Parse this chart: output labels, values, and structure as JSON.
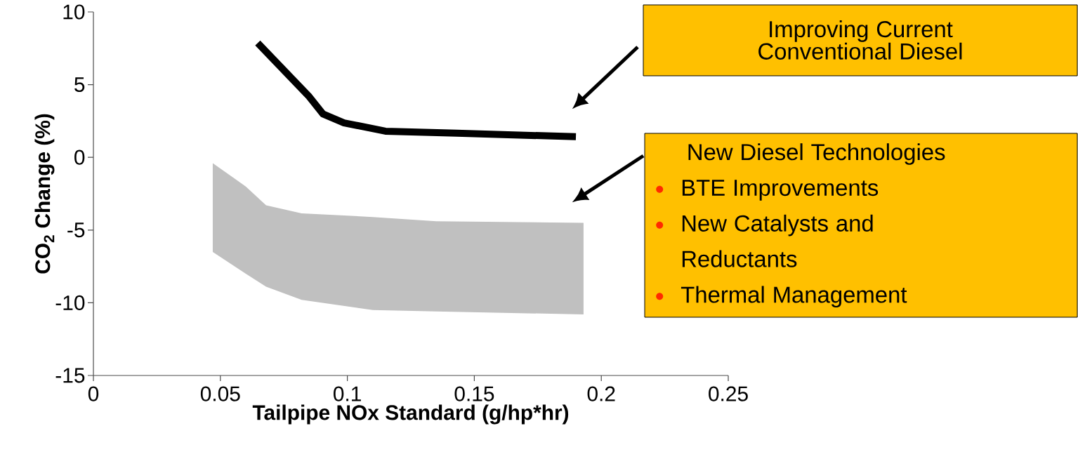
{
  "chart_data": {
    "type": "line",
    "xlabel": "Tailpipe NOx Standard (g/hp*hr)",
    "ylabel": "CO$_{2}$ Change (%)",
    "xlim": [
      0,
      0.25
    ],
    "ylim": [
      -15,
      10
    ],
    "xticks": [
      0,
      0.05,
      0.1,
      0.15,
      0.2,
      0.25
    ],
    "yticks": [
      -15,
      -10,
      -5,
      0,
      5,
      10
    ],
    "grid": false,
    "series": [
      {
        "color": "#000000",
        "x": [
          0.0647,
          0.085,
          0.0904,
          0.0987,
          0.115,
          0.143,
          0.19
        ],
        "values": [
          7.86,
          4.17,
          2.98,
          2.37,
          1.8,
          1.66,
          1.42
        ]
      },
      {
        "color": "#c0c0c0",
        "x": [
          0.047,
          0.06,
          0.068,
          0.082,
          0.11,
          0.135,
          0.193
        ],
        "values": [
          null,
          null,
          null,
          null,
          null,
          null,
          null
        ],
        "lower": [
          -6.5,
          -8.0,
          -8.9,
          -9.8,
          -10.5,
          -10.6,
          -10.8
        ],
        "upper": [
          -0.4,
          -2.0,
          -3.3,
          -3.85,
          -4.1,
          -4.4,
          -4.5
        ]
      }
    ],
    "annotations": [
      "Improving Current Conventional Diesel",
      "New Diesel Technologies",
      "BTE Improvements",
      "New Catalysts and Reductants",
      "Thermal Management"
    ]
  }
}
